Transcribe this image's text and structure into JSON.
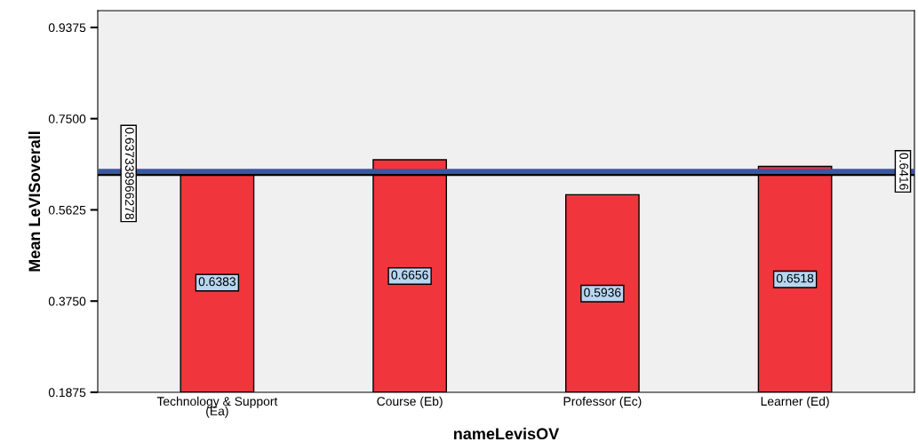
{
  "chart_data": {
    "type": "bar",
    "xlabel": "nameLevisOV",
    "ylabel": "Mean LeVISoverall",
    "categories": [
      "Technology & Support\n(Ea)",
      "Course (Eb)",
      "Professor (Ec)",
      "Learner (Ed)"
    ],
    "values": [
      0.6383,
      0.6656,
      0.5936,
      0.6518
    ],
    "color": "#f0353d",
    "data_labels": true,
    "ylim": [
      0.1875,
      0.972
    ],
    "yticks": [
      {
        "value": 0.1875,
        "label": "0.1875"
      },
      {
        "value": 0.375,
        "label": "0.3750"
      },
      {
        "value": 0.5625,
        "label": "0.5625"
      },
      {
        "value": 0.75,
        "label": "0.7500"
      },
      {
        "value": 0.9375,
        "label": "0.9375"
      }
    ],
    "ref_lines": [
      {
        "axis": "y",
        "value": 0.6416,
        "label": "0.6416",
        "color": "#3b55a6"
      },
      {
        "axis": "y",
        "value": 0.637338966278,
        "label": "0.637338966278",
        "color": "#000000"
      }
    ],
    "grid": false,
    "legend": false
  }
}
